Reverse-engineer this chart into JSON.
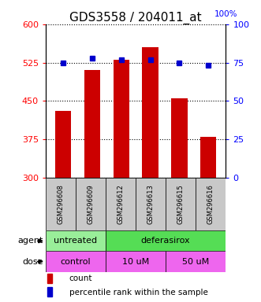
{
  "title": "GDS3558 / 204011_at",
  "samples": [
    "GSM296608",
    "GSM296609",
    "GSM296612",
    "GSM296613",
    "GSM296615",
    "GSM296616"
  ],
  "counts": [
    430,
    510,
    530,
    555,
    455,
    380
  ],
  "percentiles": [
    75,
    78,
    77,
    77,
    75,
    73
  ],
  "ylim_left": [
    300,
    600
  ],
  "ylim_right": [
    0,
    100
  ],
  "yticks_left": [
    300,
    375,
    450,
    525,
    600
  ],
  "yticks_right": [
    0,
    25,
    50,
    75,
    100
  ],
  "bar_color": "#cc0000",
  "dot_color": "#0000cc",
  "bar_bottom": 300,
  "agent_groups": [
    {
      "label": "untreated",
      "start": 0,
      "end": 2,
      "color": "#99ee99"
    },
    {
      "label": "deferasirox",
      "start": 2,
      "end": 6,
      "color": "#55dd55"
    }
  ],
  "dose_groups": [
    {
      "label": "control",
      "start": 0,
      "end": 2,
      "color": "#ee66ee"
    },
    {
      "label": "10 uM",
      "start": 2,
      "end": 4,
      "color": "#ee66ee"
    },
    {
      "label": "50 uM",
      "start": 4,
      "end": 6,
      "color": "#ee66ee"
    }
  ],
  "legend_count_label": "count",
  "legend_percentile_label": "percentile rank within the sample",
  "agent_label": "agent",
  "dose_label": "dose",
  "title_fontsize": 11,
  "tick_fontsize": 8,
  "sample_fontsize": 6,
  "row_fontsize": 8,
  "legend_fontsize": 7.5
}
